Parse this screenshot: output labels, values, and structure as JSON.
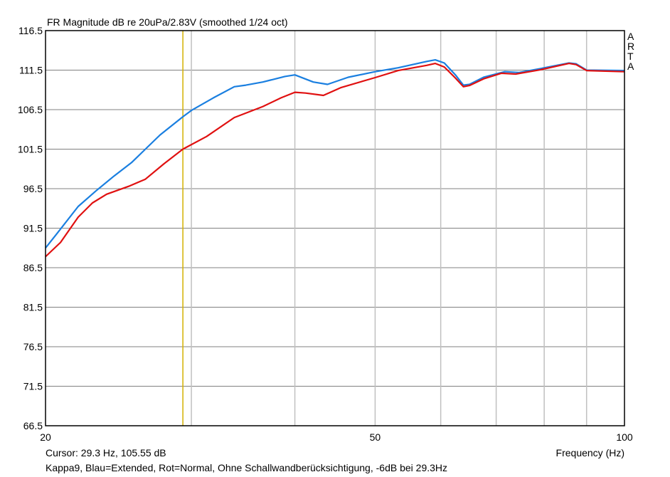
{
  "chart_data": {
    "type": "line",
    "title": "FR Magnitude dB re 20uPa/2.83V (smoothed 1/24 oct)",
    "xlabel": "Frequency (Hz)",
    "ylabel": "",
    "x_scale": "log",
    "xlim": [
      20,
      100
    ],
    "ylim": [
      66.5,
      116.5
    ],
    "x_ticks": [
      "20",
      "50",
      "100"
    ],
    "x_tick_values": [
      20,
      50,
      100
    ],
    "x_grid": [
      30,
      40,
      50,
      60,
      70,
      80,
      90
    ],
    "y_ticks": [
      "116.5",
      "111.5",
      "106.5",
      "101.5",
      "96.5",
      "91.5",
      "86.5",
      "81.5",
      "76.5",
      "71.5",
      "66.5"
    ],
    "grid": true,
    "cursor": {
      "freq": 29.3,
      "label": "Cursor: 29.3 Hz, 105.55 dB",
      "color": "#d4b000"
    },
    "brand": [
      "A",
      "R",
      "T",
      "A"
    ],
    "caption": "Kappa9, Blau=Extended, Rot=Normal, Ohne Schallwandberücksichtigung, -6dB bei 29.3Hz",
    "series": [
      {
        "name": "Extended",
        "color": "#1a7fe0",
        "x": [
          20,
          20.64,
          21.9,
          23.0,
          24.2,
          25.4,
          26.4,
          27.5,
          29.3,
          30.0,
          31.9,
          33.8,
          34.9,
          36.6,
          38.9,
          40.0,
          42.1,
          43.8,
          46.4,
          50,
          53.3,
          57.7,
          59.1,
          60.6,
          62.5,
          63.9,
          65.0,
          67.6,
          71.7,
          74.6,
          79.2,
          85.7,
          87.4,
          90.0,
          100
        ],
        "y": [
          89.0,
          90.8,
          94.25,
          96.2,
          98.1,
          99.8,
          101.5,
          103.3,
          105.6,
          106.4,
          108.0,
          109.4,
          109.6,
          110.0,
          110.7,
          110.9,
          110.0,
          109.7,
          110.6,
          111.3,
          111.8,
          112.6,
          112.8,
          112.4,
          110.9,
          109.6,
          109.7,
          110.6,
          111.3,
          111.2,
          111.7,
          112.4,
          112.3,
          111.5,
          111.45
        ]
      },
      {
        "name": "Normal",
        "color": "#e01010",
        "x": [
          20,
          20.85,
          21.9,
          22.79,
          23.7,
          25.2,
          26.4,
          27.8,
          29.3,
          31.3,
          33.8,
          36.6,
          38.5,
          40.0,
          41.2,
          43.3,
          45.5,
          50,
          53.3,
          57.7,
          59.1,
          60.6,
          62.5,
          63.9,
          65.0,
          67.6,
          71.0,
          73.9,
          79.2,
          85.7,
          87.4,
          90.0,
          100
        ],
        "y": [
          87.9,
          89.7,
          92.9,
          94.7,
          95.8,
          96.8,
          97.7,
          99.65,
          101.5,
          103.1,
          105.5,
          106.9,
          108.0,
          108.7,
          108.6,
          108.3,
          109.3,
          110.55,
          111.45,
          112.1,
          112.35,
          111.9,
          110.5,
          109.4,
          109.55,
          110.4,
          111.1,
          111.0,
          111.55,
          112.35,
          112.2,
          111.45,
          111.3
        ]
      }
    ]
  }
}
